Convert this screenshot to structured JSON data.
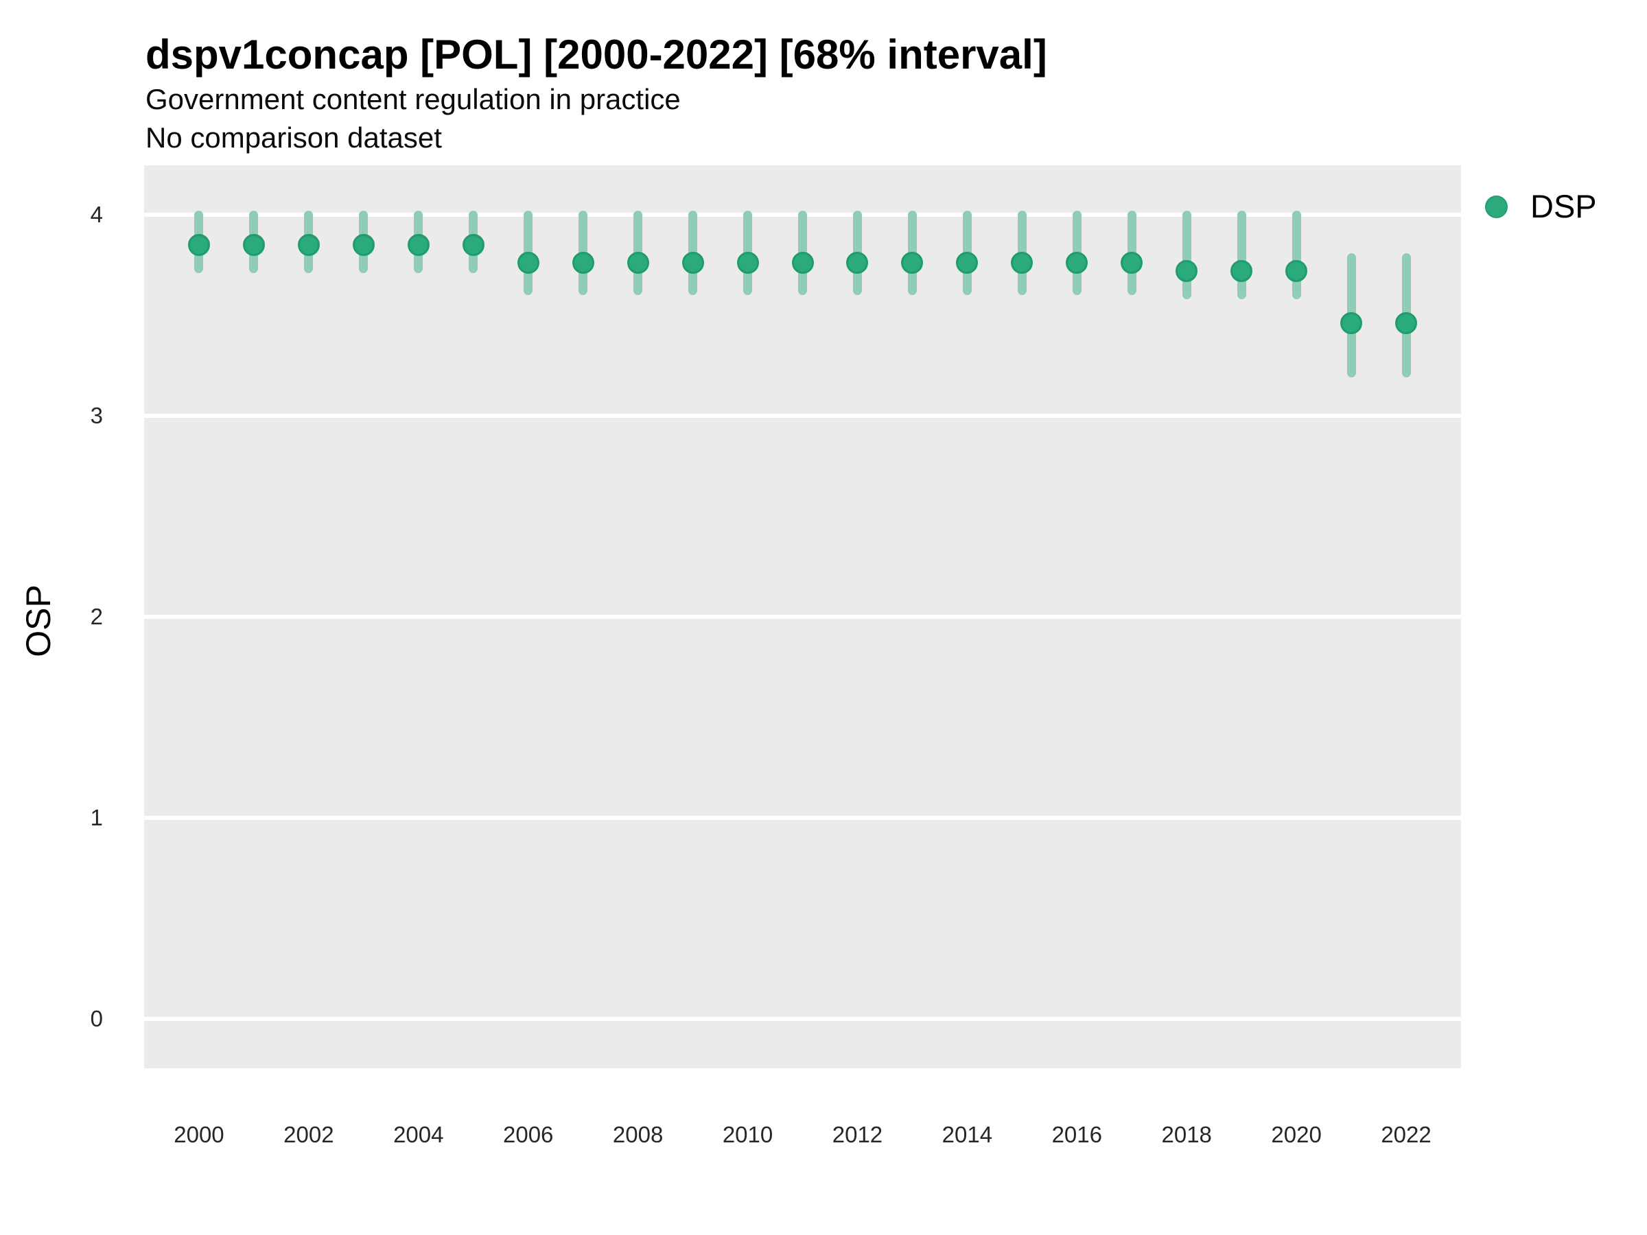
{
  "header": {
    "title": "dspv1concap [POL] [2000-2022] [68% interval]",
    "subtitle": "Government content regulation in practice",
    "comparison_note": "No comparison dataset"
  },
  "y_axis": {
    "label": "OSP",
    "ticks": [
      4,
      3,
      2,
      1,
      0
    ]
  },
  "x_axis": {
    "tick_labels": [
      2000,
      2002,
      2004,
      2006,
      2008,
      2010,
      2012,
      2014,
      2016,
      2018,
      2020,
      2022
    ]
  },
  "legend": {
    "position": "right-top",
    "items": [
      {
        "label": "DSP",
        "color": "#2baa7c"
      }
    ]
  },
  "colors": {
    "point_fill": "#2baa7c",
    "point_stroke": "#1f9b6e",
    "interval_bar": "#8fceb4",
    "panel_background": "#ebebeb",
    "gridline": "#ffffff",
    "text": "#000000",
    "tick_text": "#262626"
  },
  "chart_data": {
    "type": "pointrange",
    "title": "dspv1concap [POL] [2000-2022] [68% interval]",
    "subtitle": "Government content regulation in practice",
    "note": "No comparison dataset",
    "interval": "68%",
    "xlabel": "",
    "ylabel": "OSP",
    "ylim": [
      -0.25,
      4.25
    ],
    "y_major_gridlines": [
      0,
      1,
      2,
      3,
      4
    ],
    "minor_gridlines": false,
    "x": [
      2000,
      2001,
      2002,
      2003,
      2004,
      2005,
      2006,
      2007,
      2008,
      2009,
      2010,
      2011,
      2012,
      2013,
      2014,
      2015,
      2016,
      2017,
      2018,
      2019,
      2020,
      2021,
      2022
    ],
    "series": [
      {
        "name": "DSP",
        "values": [
          3.85,
          3.85,
          3.85,
          3.85,
          3.85,
          3.85,
          3.76,
          3.76,
          3.76,
          3.76,
          3.76,
          3.76,
          3.76,
          3.76,
          3.76,
          3.76,
          3.76,
          3.76,
          3.72,
          3.72,
          3.72,
          3.46,
          3.46
        ],
        "lower_68": [
          3.73,
          3.73,
          3.73,
          3.73,
          3.73,
          3.73,
          3.62,
          3.62,
          3.62,
          3.62,
          3.62,
          3.62,
          3.62,
          3.62,
          3.62,
          3.62,
          3.62,
          3.62,
          3.6,
          3.6,
          3.6,
          3.21,
          3.21
        ],
        "upper_68": [
          4.0,
          4.0,
          4.0,
          4.0,
          4.0,
          4.0,
          4.0,
          4.0,
          4.0,
          4.0,
          4.0,
          4.0,
          4.0,
          4.0,
          4.0,
          4.0,
          4.0,
          4.0,
          4.0,
          4.0,
          4.0,
          3.79,
          3.79
        ]
      }
    ],
    "legend_entries": [
      "DSP"
    ],
    "grid": "horizontal white major gridlines on gray panel",
    "legend_position": "right-top"
  }
}
